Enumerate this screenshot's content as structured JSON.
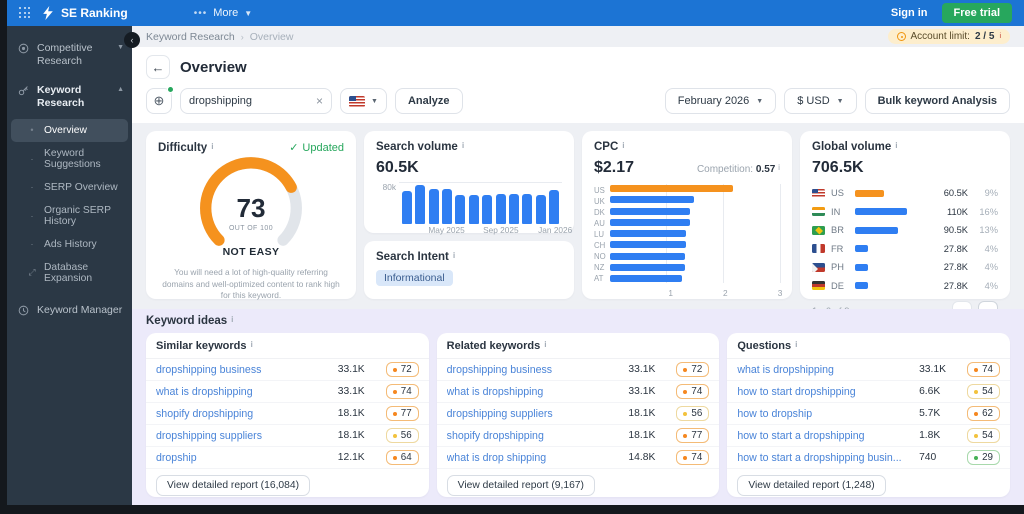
{
  "colors": {
    "topbar_blue": "#1c74d4",
    "trial_green": "#27a75d",
    "chart_blue": "#2f7ef2",
    "highlight_orange": "#f5921e",
    "sidebar_dark": "#2b3845",
    "ideas_lavender": "#eceafa"
  },
  "topbar": {
    "brand": "SE Ranking",
    "more_dots": "•••",
    "more_label": "More",
    "sign_in": "Sign in",
    "free_trial": "Free trial"
  },
  "sidebar": {
    "sections": [
      {
        "label": "Competitive Research",
        "icon": "target-icon",
        "chevron": "down",
        "expanded": false
      },
      {
        "label": "Keyword Research",
        "icon": "key-icon",
        "chevron": "up",
        "expanded": true,
        "children": [
          "Overview",
          "Keyword Suggestions",
          "SERP Overview",
          "Organic SERP History",
          "Ads History",
          "Database Expansion"
        ],
        "active_child": "Overview"
      },
      {
        "label": "Keyword Manager",
        "icon": "clock-icon",
        "chevron": null,
        "expanded": false
      }
    ]
  },
  "breadcrumb": {
    "parent": "Keyword Research",
    "current": "Overview",
    "account_limit_label": "Account limit:",
    "account_limit_value": "2 / 5"
  },
  "header": {
    "back_icon": "←",
    "title": "Overview"
  },
  "toolbar": {
    "keyword_value": "dropshipping",
    "analyze_label": "Analyze",
    "date_select": "February 2026",
    "currency_select": "$ USD",
    "bulk_button": "Bulk keyword Analysis"
  },
  "difficulty": {
    "title": "Difficulty",
    "status": "Updated",
    "score": "73",
    "scale_label": "OUT OF 100",
    "verdict": "NOT EASY",
    "description": "You will need a lot of high-quality referring domains and well-optimized content to rank high for this keyword."
  },
  "search_volume": {
    "title": "Search volume",
    "value": "60.5K",
    "chart": {
      "type": "bar",
      "ylabel_top": "80k",
      "ylim": [
        0,
        80
      ],
      "values": [
        62,
        74,
        66,
        66,
        56,
        56,
        56,
        58,
        58,
        58,
        56,
        64
      ],
      "tick_labels": [
        {
          "index": 3,
          "label": "May 2025"
        },
        {
          "index": 7,
          "label": "Sep 2025"
        },
        {
          "index": 11,
          "label": "Jan 2026"
        }
      ]
    }
  },
  "search_intent": {
    "title": "Search Intent",
    "value": "Informational"
  },
  "cpc": {
    "title": "CPC",
    "value": "$2.17",
    "competition_label": "Competition:",
    "competition_value": "0.57",
    "chart": {
      "type": "bar-horizontal",
      "xlim": [
        0,
        3
      ],
      "xticks": [
        1,
        2,
        3
      ],
      "categories": [
        "US",
        "UK",
        "DK",
        "AU",
        "LU",
        "CH",
        "NO",
        "NZ",
        "AT"
      ],
      "values": [
        2.17,
        1.48,
        1.42,
        1.42,
        1.35,
        1.35,
        1.32,
        1.32,
        1.28
      ],
      "highlight_index": 0
    }
  },
  "global_volume": {
    "title": "Global volume",
    "value": "706.5K",
    "rows": [
      {
        "code": "US",
        "flag": "us",
        "volume": "60.5K",
        "volume_num": 60.5,
        "percent": "9%",
        "color": "orange"
      },
      {
        "code": "IN",
        "flag": "in",
        "volume": "110K",
        "volume_num": 110,
        "percent": "16%",
        "color": "blue"
      },
      {
        "code": "BR",
        "flag": "br",
        "volume": "90.5K",
        "volume_num": 90.5,
        "percent": "13%",
        "color": "blue"
      },
      {
        "code": "FR",
        "flag": "fr",
        "volume": "27.8K",
        "volume_num": 27.8,
        "percent": "4%",
        "color": "blue"
      },
      {
        "code": "PH",
        "flag": "ph",
        "volume": "27.8K",
        "volume_num": 27.8,
        "percent": "4%",
        "color": "blue"
      },
      {
        "code": "DE",
        "flag": "de",
        "volume": "27.8K",
        "volume_num": 27.8,
        "percent": "4%",
        "color": "blue"
      }
    ],
    "pagination": "1 - 6 of 9"
  },
  "keyword_ideas": {
    "title": "Keyword ideas",
    "tables": [
      {
        "title": "Similar keywords",
        "footer": "View detailed report (16,084)",
        "rows": [
          {
            "keyword": "dropshipping business",
            "volume": "33.1K",
            "difficulty": "72",
            "level": "orange"
          },
          {
            "keyword": "what is dropshipping",
            "volume": "33.1K",
            "difficulty": "74",
            "level": "orange"
          },
          {
            "keyword": "shopify dropshipping",
            "volume": "18.1K",
            "difficulty": "77",
            "level": "orange"
          },
          {
            "keyword": "dropshipping suppliers",
            "volume": "18.1K",
            "difficulty": "56",
            "level": "yellow"
          },
          {
            "keyword": "dropship",
            "volume": "12.1K",
            "difficulty": "64",
            "level": "orange"
          }
        ]
      },
      {
        "title": "Related keywords",
        "footer": "View detailed report (9,167)",
        "rows": [
          {
            "keyword": "dropshipping business",
            "volume": "33.1K",
            "difficulty": "72",
            "level": "orange"
          },
          {
            "keyword": "what is dropshipping",
            "volume": "33.1K",
            "difficulty": "74",
            "level": "orange"
          },
          {
            "keyword": "dropshipping suppliers",
            "volume": "18.1K",
            "difficulty": "56",
            "level": "yellow"
          },
          {
            "keyword": "shopify dropshipping",
            "volume": "18.1K",
            "difficulty": "77",
            "level": "orange"
          },
          {
            "keyword": "what is drop shipping",
            "volume": "14.8K",
            "difficulty": "74",
            "level": "orange"
          }
        ]
      },
      {
        "title": "Questions",
        "footer": "View detailed report (1,248)",
        "rows": [
          {
            "keyword": "what is dropshipping",
            "volume": "33.1K",
            "difficulty": "74",
            "level": "orange"
          },
          {
            "keyword": "how to start dropshipping",
            "volume": "6.6K",
            "difficulty": "54",
            "level": "yellow"
          },
          {
            "keyword": "how to dropship",
            "volume": "5.7K",
            "difficulty": "62",
            "level": "orange"
          },
          {
            "keyword": "how to start a dropshipping",
            "volume": "1.8K",
            "difficulty": "54",
            "level": "yellow"
          },
          {
            "keyword": "how to start a dropshipping busin...",
            "volume": "740",
            "difficulty": "29",
            "level": "green"
          }
        ]
      }
    ]
  }
}
